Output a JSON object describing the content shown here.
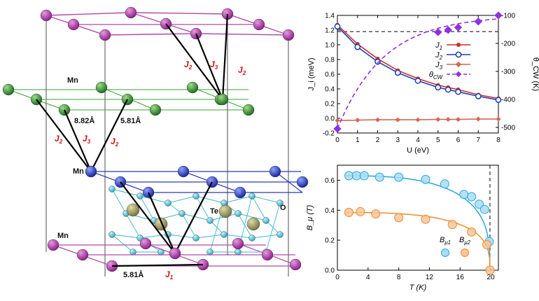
{
  "structure": {
    "labels": [
      {
        "text": "Mn"
      },
      {
        "text": "Mn"
      },
      {
        "text": "Mn"
      },
      {
        "text": "Te"
      },
      {
        "text": "O"
      },
      {
        "text": "8.82Å"
      },
      {
        "text": "5.81Å"
      },
      {
        "text": "5.81Å"
      }
    ],
    "exchange_labels": [
      "J",
      "J",
      "J",
      "J",
      "J",
      "J",
      "J"
    ],
    "exchange_subscripts": [
      "2",
      "3",
      "2",
      "2",
      "3",
      "2",
      "1"
    ],
    "colors": {
      "mn_purple": "#8e1f8c",
      "mn_green": "#1f7a1f",
      "mn_blue": "#1f2fb8",
      "te": "#8c8a55",
      "o": "#38b8d0",
      "bond_purple": "#b04aa8",
      "bond_green": "#3aa03a",
      "bond_blue": "#2b3bb0",
      "bond_cyan": "#3ab8cc",
      "exchange_line": "#000000",
      "label_red": "#cc1111"
    }
  },
  "chart_data": [
    {
      "type": "line",
      "xlabel": "U (eV)",
      "ylabel": "J_i (meV)",
      "y2label": "θ_CW (K)",
      "xlim": [
        0,
        8
      ],
      "ylim": [
        -0.2,
        1.4
      ],
      "y2lim": [
        -520,
        -100
      ],
      "xticks": [
        "0",
        "1",
        "2",
        "3",
        "4",
        "5",
        "6",
        "7",
        "8"
      ],
      "yticks": [
        "-0.2",
        "0.0",
        "0.2",
        "0.4",
        "0.6",
        "0.8",
        "1.0",
        "1.2",
        "1.4"
      ],
      "y2ticks": [
        "-500",
        "-400",
        "-300",
        "-200",
        "-100"
      ],
      "reference_line": {
        "y": 1.18,
        "style": "dashed"
      },
      "legend_position": "right",
      "series": [
        {
          "name": "J1",
          "axis": "left",
          "color": "#d42a2a",
          "x": [
            0,
            1,
            2,
            3,
            4,
            5,
            5.5,
            6,
            7,
            8
          ],
          "values": [
            1.27,
            1.01,
            0.81,
            0.65,
            0.54,
            0.45,
            0.42,
            0.39,
            0.32,
            0.27
          ]
        },
        {
          "name": "J2",
          "axis": "left",
          "color": "#1a3fb0",
          "x": [
            0,
            1,
            2,
            3,
            4,
            5,
            5.5,
            6,
            7,
            8
          ],
          "values": [
            1.25,
            0.97,
            0.77,
            0.62,
            0.51,
            0.42,
            0.39,
            0.36,
            0.3,
            0.25
          ]
        },
        {
          "name": "J3",
          "axis": "left",
          "color": "#d06a55",
          "x": [
            0,
            1,
            2,
            3,
            4,
            5,
            5.5,
            6,
            7,
            8
          ],
          "values": [
            -0.03,
            -0.025,
            -0.02,
            -0.02,
            -0.02,
            -0.015,
            -0.015,
            -0.015,
            -0.01,
            -0.01
          ]
        },
        {
          "name": "θCW",
          "axis": "right",
          "color": "#9030e0",
          "x": [
            0,
            5,
            5.5,
            6,
            7,
            8
          ],
          "values": [
            -505,
            -160,
            -152,
            -143,
            -122,
            -100
          ]
        }
      ]
    },
    {
      "type": "scatter",
      "xlabel": "T (K)",
      "ylabel": "B_μ (T)",
      "xlim": [
        0,
        21
      ],
      "ylim": [
        0,
        0.7
      ],
      "xticks": [
        "0",
        "4",
        "8",
        "12",
        "16",
        "20"
      ],
      "yticks": [
        "0.0",
        "0.2",
        "0.4",
        "0.6"
      ],
      "reference_line": {
        "x": 19.9,
        "style": "dashed"
      },
      "legend_position": "bottom-right",
      "series": [
        {
          "name": "Bμ1",
          "color": "#2aa7dc",
          "fill": "#a9dcf2",
          "x": [
            1.5,
            2.5,
            3.5,
            5.5,
            8,
            11.5,
            14,
            16.5,
            17.5,
            18.5,
            19.2,
            19.8
          ],
          "values": [
            0.63,
            0.63,
            0.63,
            0.62,
            0.62,
            0.605,
            0.575,
            0.505,
            0.49,
            0.44,
            0.405,
            0.19
          ]
        },
        {
          "name": "Bμ2",
          "color": "#f08a2c",
          "fill": "#f6c79c",
          "x": [
            1.5,
            3,
            5,
            8,
            11.5,
            15,
            17.5,
            19.5,
            19.9
          ],
          "values": [
            0.385,
            0.39,
            0.375,
            0.35,
            0.34,
            0.305,
            0.255,
            0.17,
            0.0
          ]
        }
      ]
    }
  ],
  "legends": {
    "top": [
      {
        "label": "J",
        "sub": "1"
      },
      {
        "label": "J",
        "sub": "2"
      },
      {
        "label": "J",
        "sub": "3"
      },
      {
        "label": "θ",
        "sub": "CW"
      }
    ],
    "bottom": [
      {
        "label": "B",
        "sub": "μ1"
      },
      {
        "label": "B",
        "sub": "μ2"
      }
    ]
  }
}
